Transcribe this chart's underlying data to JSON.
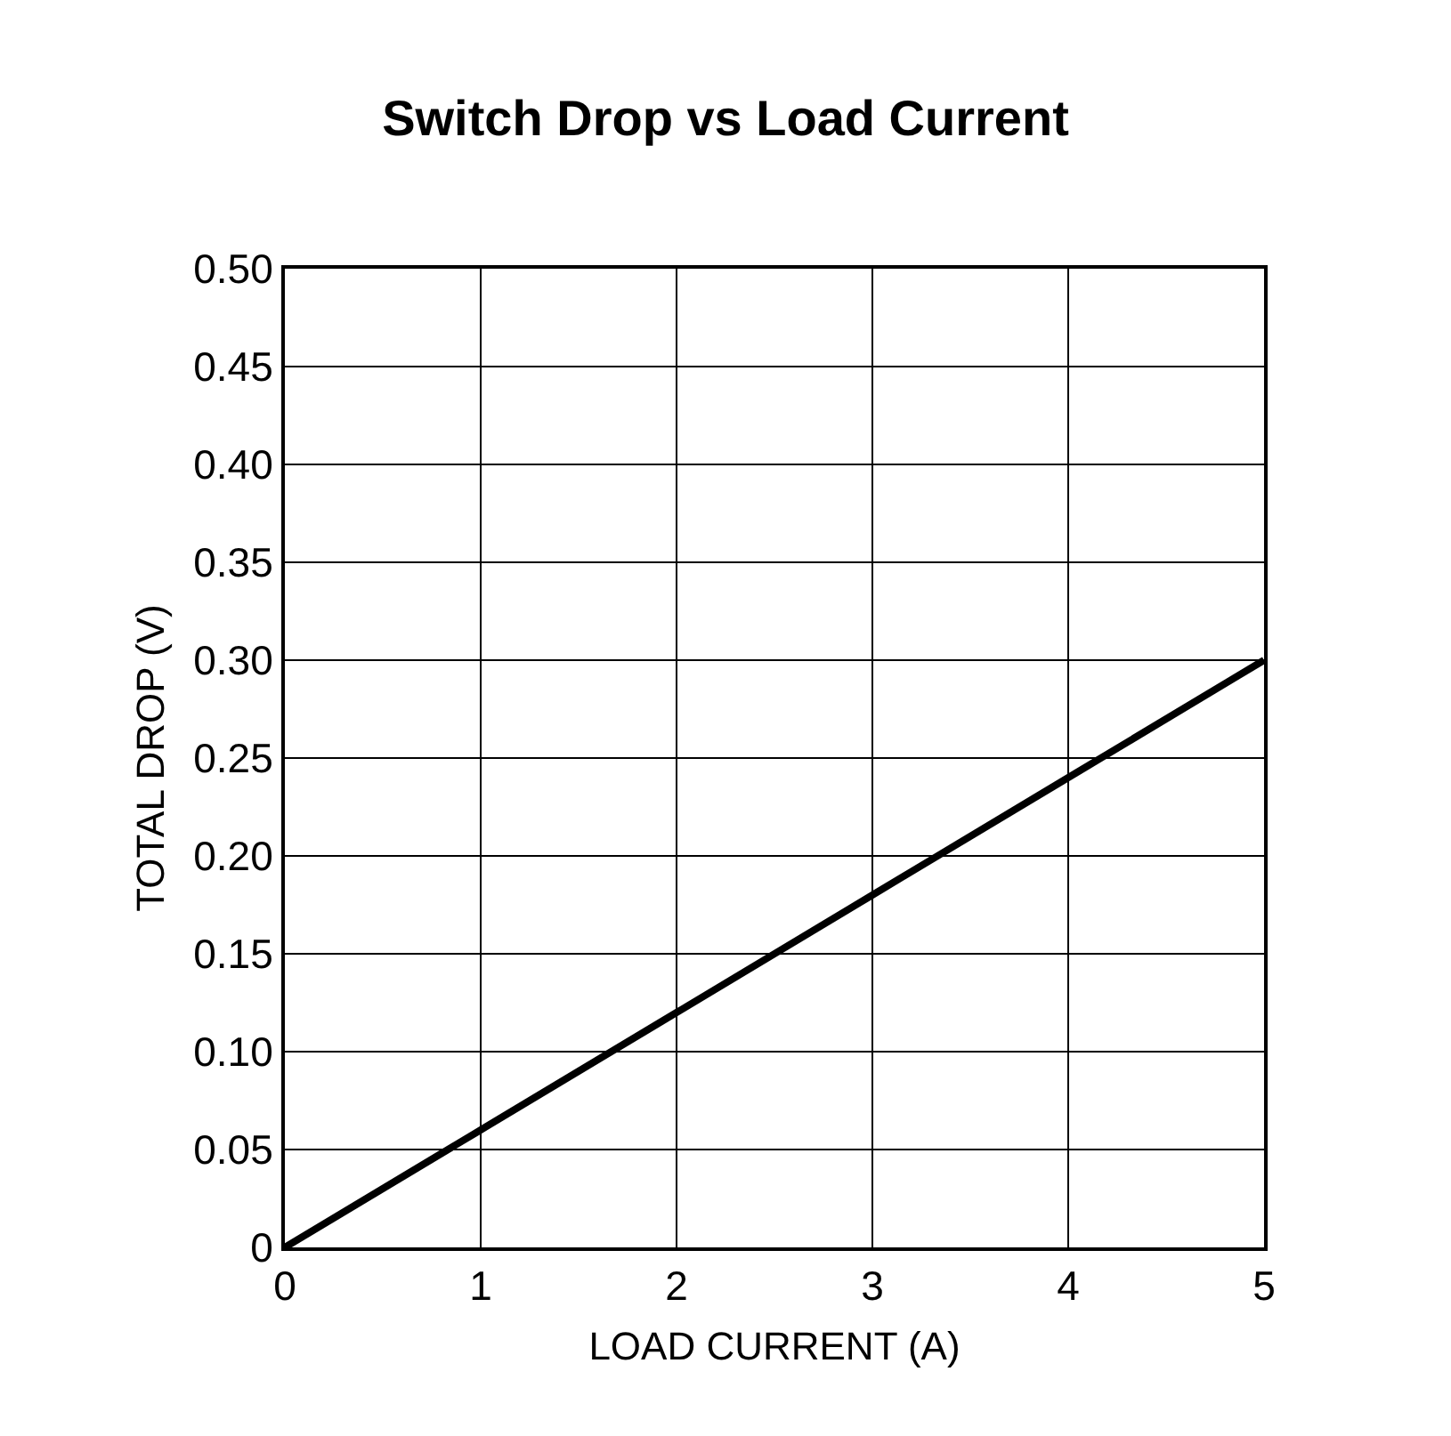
{
  "chart_data": {
    "type": "line",
    "title": "Switch Drop vs Load Current",
    "xlabel": "LOAD CURRENT (A)",
    "ylabel": "TOTAL DROP (V)",
    "x": [
      0,
      1,
      2,
      3,
      4,
      5
    ],
    "series": [
      {
        "color": "#000000",
        "values": [
          0,
          0.06,
          0.12,
          0.18,
          0.24,
          0.3
        ]
      }
    ],
    "xlim": [
      0,
      5
    ],
    "xticks": [
      0,
      1,
      2,
      3,
      4,
      5
    ],
    "ylim": [
      0,
      0.5
    ],
    "yticks": [
      0,
      0.05,
      {
        "value": 0.1,
        "label": "0.10"
      },
      0.15,
      {
        "value": 0.2,
        "label": "0.20"
      },
      0.25,
      {
        "value": 0.3,
        "label": "0.30"
      },
      0.35,
      {
        "value": 0.4,
        "label": "0.40"
      },
      0.45,
      {
        "value": 0.5,
        "label": "0.50"
      }
    ],
    "grid": true,
    "marker": "none",
    "line_style": "solid"
  }
}
